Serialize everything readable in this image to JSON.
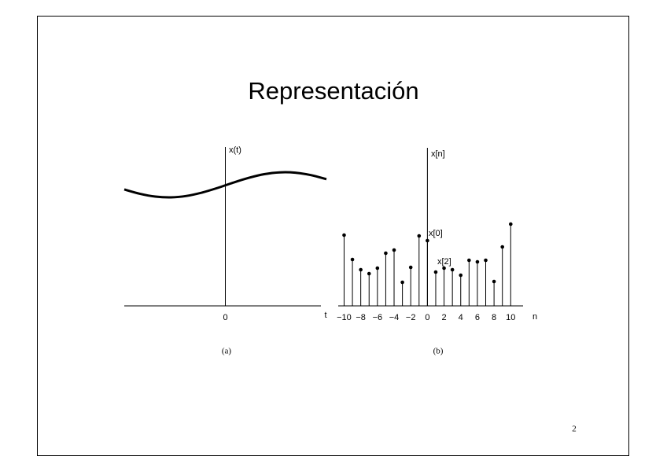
{
  "title": "Representación",
  "page_number": "2",
  "chart_data": [
    {
      "type": "line",
      "caption": "(a)",
      "xlabel": "t",
      "ylabel": "x(t)",
      "x": [
        -13,
        -11,
        -9,
        -7,
        -5,
        -3,
        -1,
        1,
        3,
        5,
        7,
        9,
        11,
        13
      ],
      "values": [
        14.81,
        14.26,
        13.9,
        13.8,
        13.98,
        14.41,
        15.0,
        15.67,
        16.28,
        16.75,
        16.98,
        16.94,
        16.63,
        16.11
      ],
      "color": "#000000",
      "xlim": [
        -13,
        13
      ],
      "ylim": [
        0,
        20
      ],
      "xticks": [
        0
      ]
    },
    {
      "type": "stem",
      "caption": "(b)",
      "xlabel": "n",
      "ylabel": "x[n]",
      "annotations": [
        "x[0]",
        "x[2]"
      ],
      "x": [
        -10,
        -9,
        -8,
        -7,
        -6,
        -5,
        -4,
        -3,
        -2,
        -1,
        0,
        1,
        2,
        3,
        4,
        5,
        6,
        7,
        8,
        9,
        10
      ],
      "values": [
        9.0,
        5.9,
        4.6,
        4.1,
        4.8,
        6.7,
        7.1,
        3.0,
        4.9,
        8.9,
        8.3,
        4.3,
        4.8,
        4.6,
        3.9,
        5.8,
        5.6,
        5.8,
        3.1,
        7.5,
        10.4
      ],
      "color": "#000000",
      "xlim": [
        -10.8,
        11.2
      ],
      "ylim": [
        0,
        20
      ],
      "xticks": [
        {
          "value": -10,
          "label": "−10"
        },
        {
          "value": -8,
          "label": "−8"
        },
        {
          "value": -6,
          "label": "−6"
        },
        {
          "value": -4,
          "label": "−4"
        },
        {
          "value": -2,
          "label": "−2"
        },
        0,
        2,
        4,
        6,
        8,
        10
      ]
    }
  ]
}
